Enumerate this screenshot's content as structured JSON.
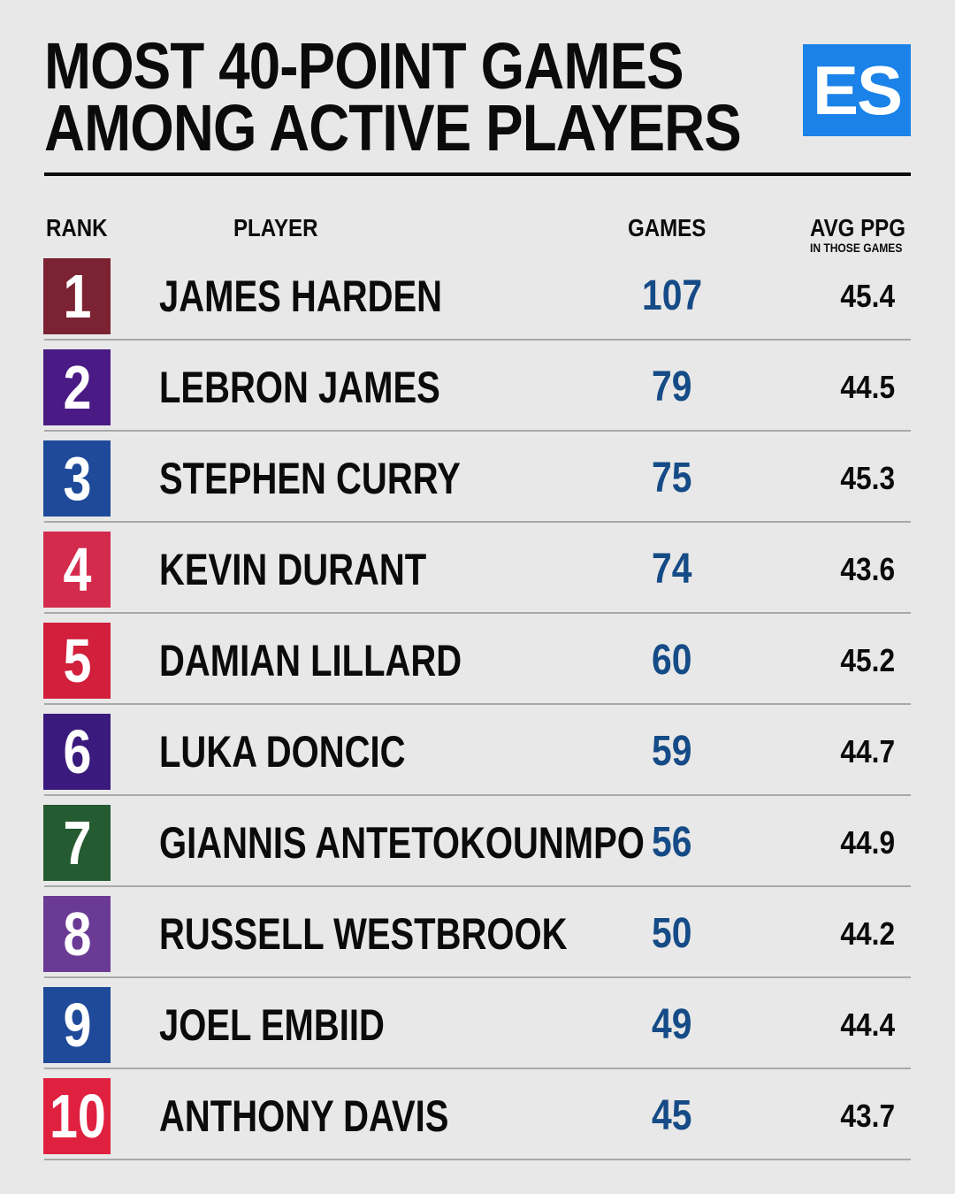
{
  "title": {
    "line1": "MOST 40-POINT GAMES",
    "line2": "AMONG ACTIVE PLAYERS"
  },
  "logo": {
    "text": "ES",
    "color": "#1a82e8"
  },
  "columns": {
    "rank": "RANK",
    "player": "PLAYER",
    "games": "GAMES",
    "avg": "AVG PPG",
    "avg_sub": "IN THOSE GAMES"
  },
  "colors": {
    "games_text": "#154b86"
  },
  "chart_data": {
    "type": "table",
    "title": "MOST 40-POINT GAMES AMONG ACTIVE PLAYERS",
    "columns": [
      "RANK",
      "PLAYER",
      "GAMES",
      "AVG PPG IN THOSE GAMES"
    ],
    "rows": [
      {
        "rank": "1",
        "player": "JAMES HARDEN",
        "games": "107",
        "avg": "45.4",
        "color": "#7b2233"
      },
      {
        "rank": "2",
        "player": "LEBRON JAMES",
        "games": "79",
        "avg": "44.5",
        "color": "#4a1a85"
      },
      {
        "rank": "3",
        "player": "STEPHEN CURRY",
        "games": "75",
        "avg": "45.3",
        "color": "#1f4a9a"
      },
      {
        "rank": "4",
        "player": "KEVIN DURANT",
        "games": "74",
        "avg": "43.6",
        "color": "#d42a4b"
      },
      {
        "rank": "5",
        "player": "DAMIAN LILLARD",
        "games": "60",
        "avg": "45.2",
        "color": "#d21f3b"
      },
      {
        "rank": "6",
        "player": "LUKA DONCIC",
        "games": "59",
        "avg": "44.7",
        "color": "#3b1a7e"
      },
      {
        "rank": "7",
        "player": "GIANNIS ANTETOKOUNMPO",
        "games": "56",
        "avg": "44.9",
        "color": "#245b30"
      },
      {
        "rank": "8",
        "player": "RUSSELL WESTBROOK",
        "games": "50",
        "avg": "44.2",
        "color": "#6b3a95"
      },
      {
        "rank": "9",
        "player": "JOEL EMBIID",
        "games": "49",
        "avg": "44.4",
        "color": "#1f4a9a"
      },
      {
        "rank": "10",
        "player": "ANTHONY DAVIS",
        "games": "45",
        "avg": "43.7",
        "color": "#e0203f"
      }
    ]
  }
}
